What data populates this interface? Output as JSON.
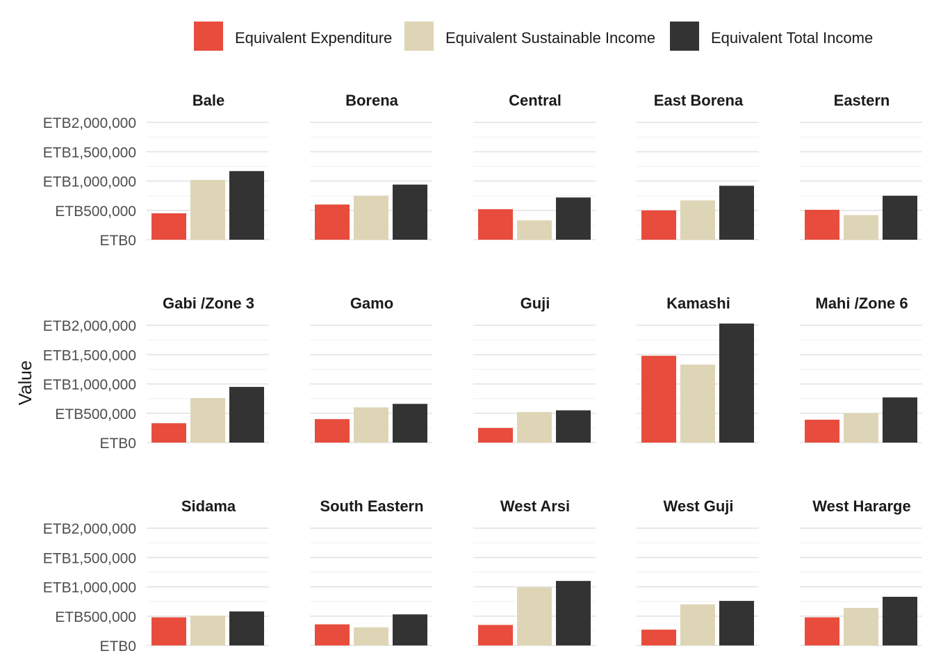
{
  "chart_data": {
    "type": "bar",
    "ylabel": "Value",
    "xlabel": "",
    "ylim": [
      0,
      2000000
    ],
    "y_ticks": [
      0,
      500000,
      1000000,
      1500000,
      2000000
    ],
    "y_tick_labels": [
      "ETB0",
      "ETB500,000",
      "ETB1,000,000",
      "ETB1,500,000",
      "ETB2,000,000"
    ],
    "grid": true,
    "legend_position": "top",
    "series": [
      {
        "name": "Equivalent Expenditure",
        "color": "#e74c3c"
      },
      {
        "name": "Equivalent Sustainable Income",
        "color": "#ddd5b5"
      },
      {
        "name": "Equivalent Total Income",
        "color": "#333333"
      }
    ],
    "panels": [
      {
        "title": "Bale",
        "values": [
          450000,
          1020000,
          1170000
        ]
      },
      {
        "title": "Borena",
        "values": [
          600000,
          750000,
          940000
        ]
      },
      {
        "title": "Central",
        "values": [
          520000,
          330000,
          720000
        ]
      },
      {
        "title": "East Borena",
        "values": [
          500000,
          670000,
          920000
        ]
      },
      {
        "title": "Eastern",
        "values": [
          510000,
          420000,
          750000
        ]
      },
      {
        "title": "Gabi /Zone 3",
        "values": [
          330000,
          760000,
          950000
        ]
      },
      {
        "title": "Gamo",
        "values": [
          400000,
          600000,
          660000
        ]
      },
      {
        "title": "Guji",
        "values": [
          250000,
          520000,
          550000
        ]
      },
      {
        "title": "Kamashi",
        "values": [
          1480000,
          1330000,
          2030000
        ]
      },
      {
        "title": "Mahi /Zone 6",
        "values": [
          390000,
          500000,
          770000
        ]
      },
      {
        "title": "Sidama",
        "values": [
          480000,
          510000,
          580000
        ]
      },
      {
        "title": "South Eastern",
        "values": [
          360000,
          310000,
          530000
        ]
      },
      {
        "title": "West Arsi",
        "values": [
          350000,
          990000,
          1100000
        ]
      },
      {
        "title": "West Guji",
        "values": [
          270000,
          700000,
          760000
        ]
      },
      {
        "title": "West Hararge",
        "values": [
          480000,
          640000,
          830000
        ]
      }
    ]
  }
}
